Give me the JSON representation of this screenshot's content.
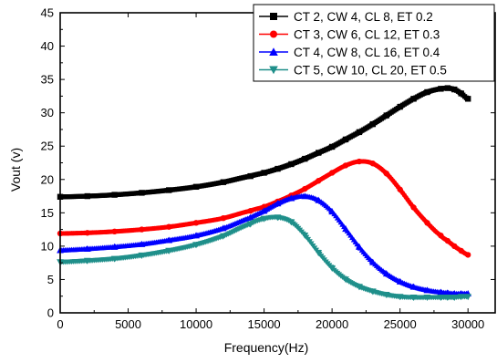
{
  "chart_data": {
    "type": "line",
    "xlabel": "Frequency(Hz)",
    "ylabel": "Vout (v)",
    "xlim": [
      0,
      32000
    ],
    "ylim": [
      0,
      45
    ],
    "xticks": [
      0,
      5000,
      10000,
      15000,
      20000,
      25000,
      30000
    ],
    "yticks": [
      0,
      5,
      10,
      15,
      20,
      25,
      30,
      35,
      40,
      45
    ],
    "grid": false,
    "legend_position": "top-right",
    "x": [
      0,
      2000,
      4000,
      6000,
      8000,
      10000,
      12000,
      14000,
      15000,
      16000,
      17000,
      18000,
      19000,
      20000,
      21000,
      22000,
      23000,
      24000,
      25000,
      26000,
      27000,
      28000,
      28500,
      29000,
      29500,
      30000
    ],
    "series": [
      {
        "name": "CT 2, CW 4, CL 8, ET 0.2",
        "color": "#000000",
        "marker": "square",
        "values": [
          17.4,
          17.5,
          17.7,
          18.0,
          18.4,
          18.9,
          19.6,
          20.5,
          21.0,
          21.6,
          22.3,
          23.1,
          24.0,
          24.9,
          26.0,
          27.1,
          28.3,
          29.6,
          30.9,
          32.1,
          33.1,
          33.6,
          33.7,
          33.5,
          32.9,
          32.1
        ]
      },
      {
        "name": "CT 3, CW 6, CL 12, ET 0.3",
        "color": "#ff0000",
        "marker": "circle",
        "values": [
          11.9,
          12.0,
          12.2,
          12.5,
          12.9,
          13.5,
          14.2,
          15.3,
          15.9,
          16.7,
          17.6,
          18.6,
          19.8,
          21.0,
          22.1,
          22.7,
          22.4,
          20.9,
          18.5,
          15.8,
          13.5,
          11.6,
          10.8,
          10.0,
          9.3,
          8.7
        ]
      },
      {
        "name": "CT 4, CW 8, CL 16, ET 0.4",
        "color": "#0000ff",
        "marker": "triangle-up",
        "values": [
          9.4,
          9.6,
          9.9,
          10.3,
          10.9,
          11.6,
          12.7,
          14.3,
          15.3,
          16.4,
          17.2,
          17.5,
          16.9,
          15.2,
          12.6,
          9.9,
          7.6,
          5.9,
          4.7,
          3.9,
          3.4,
          3.1,
          3.0,
          2.9,
          2.9,
          2.9
        ]
      },
      {
        "name": "CT 5, CW 10, CL 20, ET 0.5",
        "color": "#1f8f8a",
        "marker": "triangle-down",
        "values": [
          7.6,
          7.8,
          8.1,
          8.6,
          9.3,
          10.2,
          11.5,
          13.3,
          14.1,
          14.3,
          13.6,
          11.6,
          9.0,
          6.7,
          5.0,
          3.9,
          3.2,
          2.7,
          2.4,
          2.3,
          2.3,
          2.3,
          2.3,
          2.3,
          2.4,
          2.4
        ]
      }
    ]
  }
}
